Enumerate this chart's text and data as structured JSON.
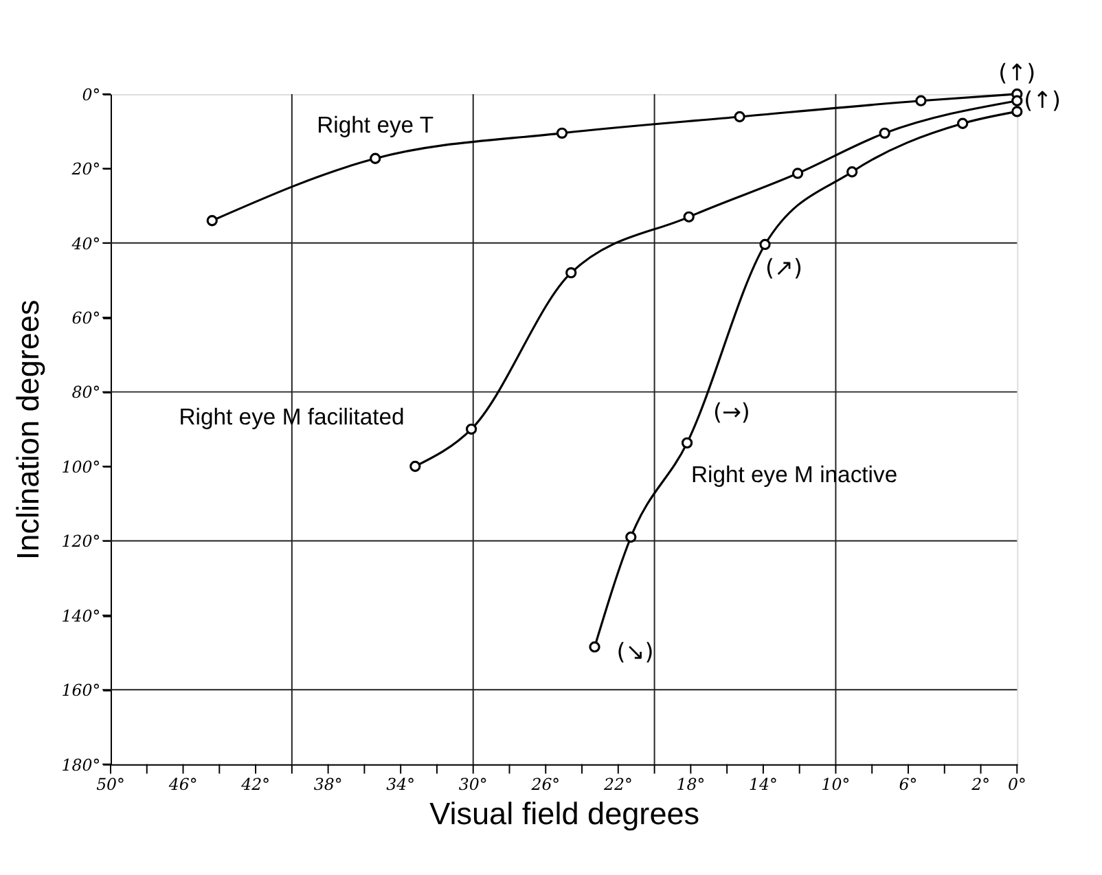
{
  "chart_data": {
    "type": "line",
    "xlabel": "Visual field degrees",
    "ylabel": "Inclination degrees",
    "xlim": [
      50,
      0
    ],
    "ylim": [
      180,
      0
    ],
    "xticks": [
      {
        "value": 50,
        "label": "50°"
      },
      {
        "value": 48,
        "label": null
      },
      {
        "value": 46,
        "label": "46°"
      },
      {
        "value": 44,
        "label": null
      },
      {
        "value": 42,
        "label": "42°"
      },
      {
        "value": 40,
        "label": null
      },
      {
        "value": 38,
        "label": "38°"
      },
      {
        "value": 36,
        "label": null
      },
      {
        "value": 34,
        "label": "34°"
      },
      {
        "value": 32,
        "label": null
      },
      {
        "value": 30,
        "label": "30°"
      },
      {
        "value": 28,
        "label": null
      },
      {
        "value": 26,
        "label": "26°"
      },
      {
        "value": 24,
        "label": null
      },
      {
        "value": 22,
        "label": "22°"
      },
      {
        "value": 20,
        "label": null
      },
      {
        "value": 18,
        "label": "18°"
      },
      {
        "value": 16,
        "label": null
      },
      {
        "value": 14,
        "label": "14°"
      },
      {
        "value": 12,
        "label": null
      },
      {
        "value": 10,
        "label": "10°"
      },
      {
        "value": 8,
        "label": null
      },
      {
        "value": 6,
        "label": "6°"
      },
      {
        "value": 4,
        "label": null
      },
      {
        "value": 2,
        "label": "2°"
      },
      {
        "value": 0,
        "label": "0°"
      }
    ],
    "yticks": [
      {
        "value": 0,
        "label": "0°"
      },
      {
        "value": 20,
        "label": "20°"
      },
      {
        "value": 40,
        "label": "40°"
      },
      {
        "value": 60,
        "label": "60°"
      },
      {
        "value": 80,
        "label": "80°"
      },
      {
        "value": 100,
        "label": "100°"
      },
      {
        "value": 120,
        "label": "120°"
      },
      {
        "value": 140,
        "label": "140°"
      },
      {
        "value": 160,
        "label": "160°"
      },
      {
        "value": 180,
        "label": "180°"
      }
    ],
    "grid": true,
    "marker": "circle",
    "line_style": "solid",
    "legend": false,
    "series": [
      {
        "name": "Right eye T",
        "color": "#000000",
        "x": [
          44.4,
          35.4,
          25.1,
          15.3,
          5.3,
          0
        ],
        "values": [
          34,
          17.3,
          10.5,
          6.1,
          1.8,
          0
        ]
      },
      {
        "name": "Right eye M facilitated",
        "color": "#000000",
        "x": [
          33.2,
          30.1,
          24.6,
          18.1,
          12.1,
          7.3,
          0
        ],
        "values": [
          100,
          90,
          48,
          33,
          21.3,
          10.5,
          1.8
        ]
      },
      {
        "name": "Right eye M inactive",
        "color": "#000000",
        "x": [
          23.3,
          21.3,
          18.2,
          13.9,
          9.1,
          3.0,
          0
        ],
        "values": [
          148.5,
          119,
          93.7,
          40.4,
          20.9,
          7.9,
          4.7
        ]
      }
    ],
    "annotations": [
      {
        "text": "(↑)",
        "x": 0,
        "y": 0
      },
      {
        "text": "(↑)",
        "x": 0,
        "y": 1.8
      },
      {
        "text": "(↗)",
        "x": 13.9,
        "y": 40.4
      },
      {
        "text": "(→)",
        "x": 18.2,
        "y": 93.7
      },
      {
        "text": "(↘)",
        "x": 23.3,
        "y": 148.5
      }
    ]
  }
}
